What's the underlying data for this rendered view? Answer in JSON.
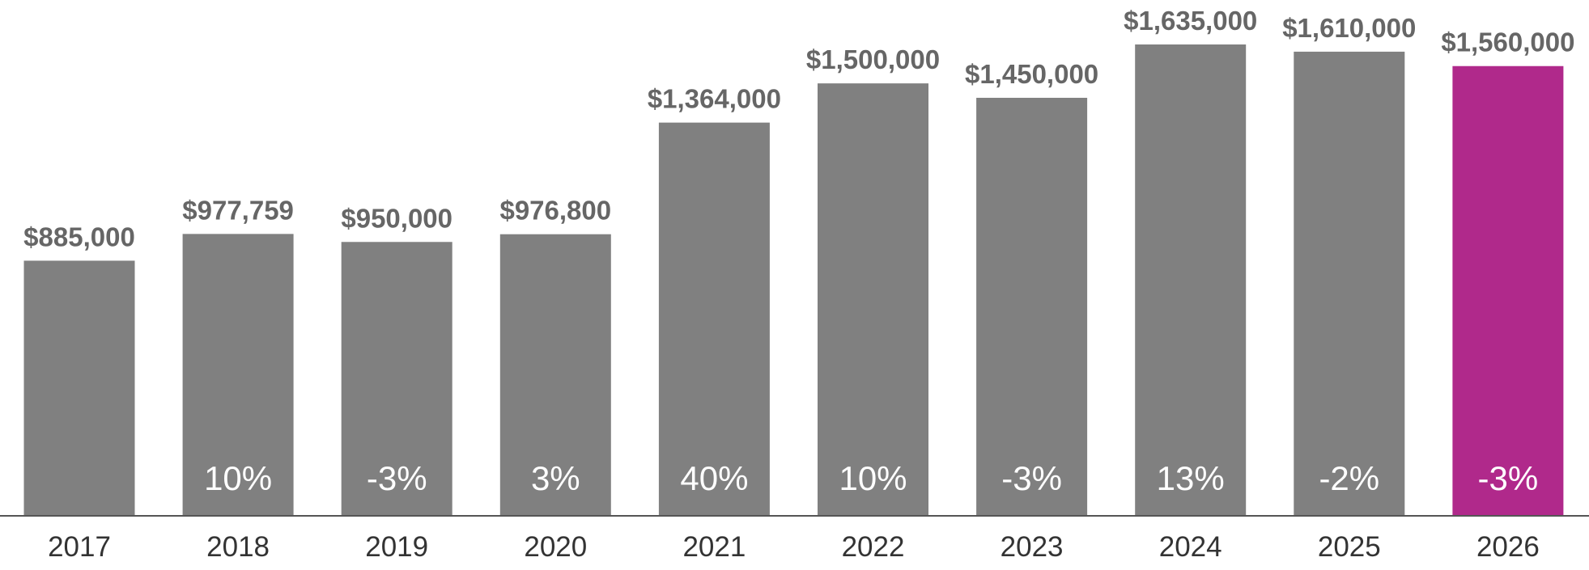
{
  "chart_data": {
    "type": "bar",
    "categories": [
      "2017",
      "2018",
      "2019",
      "2020",
      "2021",
      "2022",
      "2023",
      "2024",
      "2025",
      "2026"
    ],
    "values": [
      885000,
      977759,
      950000,
      976800,
      1364000,
      1500000,
      1450000,
      1635000,
      1610000,
      1560000
    ],
    "value_labels": [
      "$885,000",
      "$977,759",
      "$950,000",
      "$976,800",
      "$1,364,000",
      "$1,500,000",
      "$1,450,000",
      "$1,635,000",
      "$1,610,000",
      "$1,560,000"
    ],
    "change_labels": [
      "",
      "10%",
      "-3%",
      "3%",
      "40%",
      "10%",
      "-3%",
      "13%",
      "-2%",
      "-3%"
    ],
    "ylim": [
      0,
      1635000
    ],
    "grid": false,
    "legend": "none",
    "colors": {
      "bar": "#808080",
      "highlight_bar": "#B0298B",
      "value_label": "#666666",
      "axis_line": "#555555"
    },
    "highlight_index": 9
  }
}
